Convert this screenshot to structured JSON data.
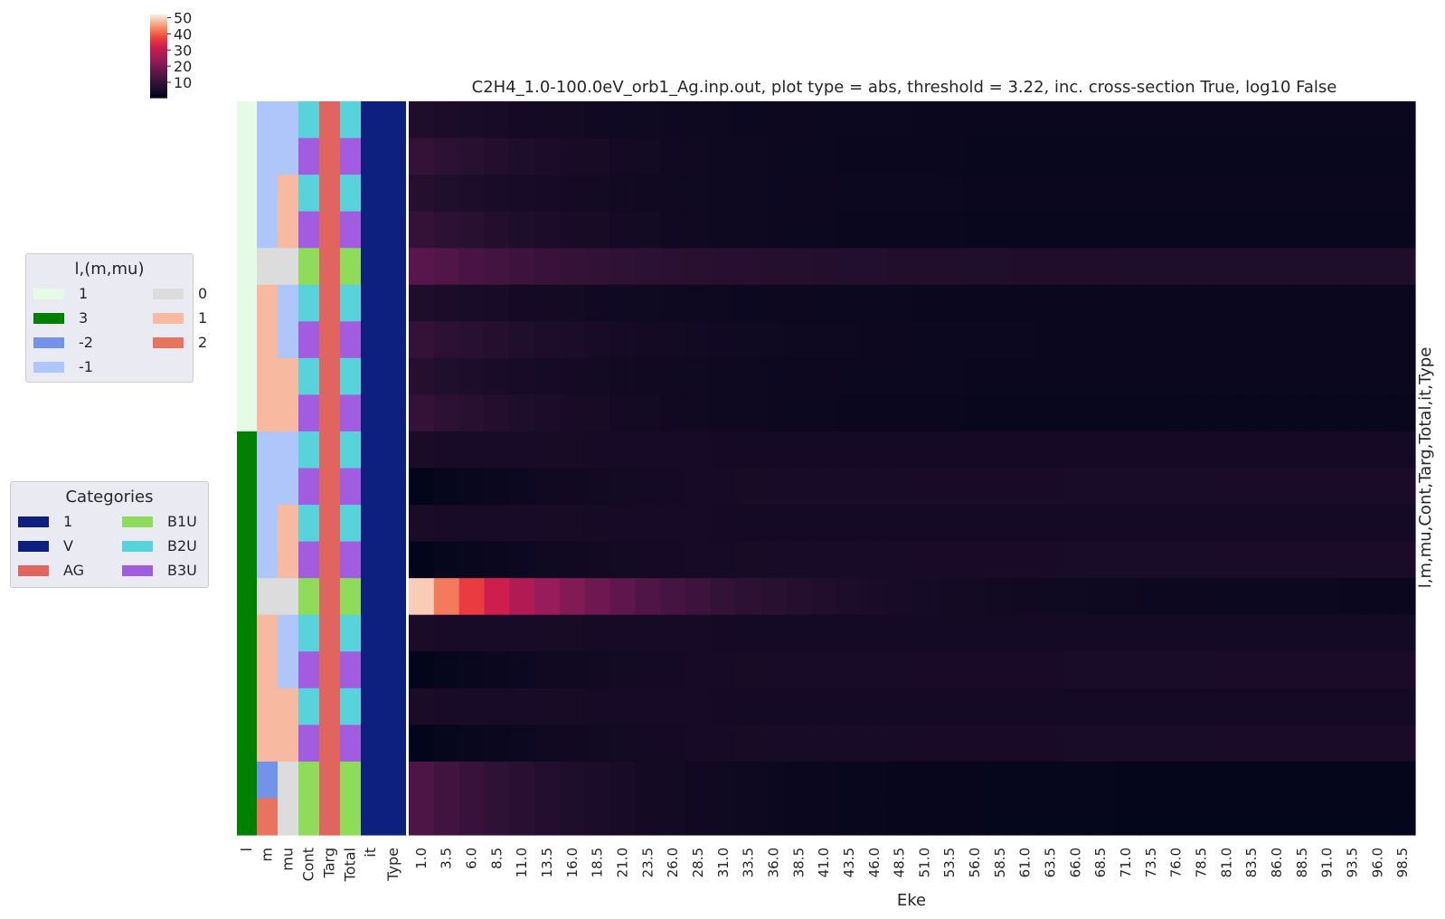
{
  "title": "C2H4_1.0-100.0eV_orb1_Ag.inp.out, plot type = abs, threshold = 3.22, inc. cross-section True, log10 False",
  "colorbar": {
    "ticks": [
      50,
      40,
      30,
      20,
      10
    ],
    "vmin": 0.5,
    "vmax": 52,
    "colormap": "rocket"
  },
  "legend_lmmu": {
    "title": "l,(m,mu)",
    "items": [
      {
        "label": "1",
        "color": "#e5fbe5"
      },
      {
        "label": "3",
        "color": "#008000"
      },
      {
        "label": "-2",
        "color": "#7393e8"
      },
      {
        "label": "-1",
        "color": "#aec6fa"
      },
      {
        "label": "0",
        "color": "#dcdcdc"
      },
      {
        "label": "1",
        "color": "#f7b99f"
      },
      {
        "label": "2",
        "color": "#e8735e"
      }
    ]
  },
  "legend_categories": {
    "title": "Categories",
    "items": [
      {
        "label": "1",
        "color": "#0d2080"
      },
      {
        "label": "V",
        "color": "#0d2080"
      },
      {
        "label": "AG",
        "color": "#e0655f"
      },
      {
        "label": "B1U",
        "color": "#8fdc5a"
      },
      {
        "label": "B2U",
        "color": "#58d3dc"
      },
      {
        "label": "B3U",
        "color": "#a25cdf"
      }
    ]
  },
  "annotation_columns": [
    "l",
    "m",
    "mu",
    "Cont",
    "Targ",
    "Total",
    "it",
    "Type"
  ],
  "chart_data": {
    "type": "heatmap",
    "title": "C2H4_1.0-100.0eV_orb1_Ag.inp.out, plot type = abs, threshold = 3.22, inc. cross-section True, log10 False",
    "xlabel": "Eke",
    "ylabel": "l,m,mu,Cont,Targ,Total,it,Type",
    "x_range": [
      1.0,
      98.5
    ],
    "x_step": 2.5,
    "x_tick_labels": [
      "1.0",
      "3.5",
      "6.0",
      "8.5",
      "11.0",
      "13.5",
      "16.0",
      "18.5",
      "21.0",
      "23.5",
      "26.0",
      "28.5",
      "31.0",
      "33.5",
      "36.0",
      "38.5",
      "41.0",
      "43.5",
      "46.0",
      "48.5",
      "51.0",
      "53.5",
      "56.0",
      "58.5",
      "61.0",
      "63.5",
      "66.0",
      "68.5",
      "71.0",
      "73.5",
      "76.0",
      "78.5",
      "81.0",
      "83.5",
      "86.0",
      "88.5",
      "91.0",
      "93.5",
      "96.0",
      "98.5"
    ],
    "rows": [
      {
        "l": "1",
        "m": "-1",
        "mu": "-1",
        "Cont": "B2U",
        "Targ": "AG",
        "Total": "B2U",
        "it": "1",
        "Type": "V",
        "start": 6,
        "end": 2
      },
      {
        "l": "1",
        "m": "-1",
        "mu": "-1",
        "Cont": "B3U",
        "Targ": "AG",
        "Total": "B3U",
        "it": "1",
        "Type": "V",
        "start": 10,
        "end": 1.5
      },
      {
        "l": "1",
        "m": "-1",
        "mu": "1",
        "Cont": "B2U",
        "Targ": "AG",
        "Total": "B2U",
        "it": "1",
        "Type": "V",
        "start": 7,
        "end": 2
      },
      {
        "l": "1",
        "m": "-1",
        "mu": "1",
        "Cont": "B3U",
        "Targ": "AG",
        "Total": "B3U",
        "it": "1",
        "Type": "V",
        "start": 10,
        "end": 1.5
      },
      {
        "l": "1",
        "m": "0",
        "mu": "0",
        "Cont": "B1U",
        "Targ": "AG",
        "Total": "B1U",
        "it": "1",
        "Type": "V",
        "start": 16,
        "end": 6
      },
      {
        "l": "1",
        "m": "1",
        "mu": "-1",
        "Cont": "B2U",
        "Targ": "AG",
        "Total": "B2U",
        "it": "1",
        "Type": "V",
        "start": 6,
        "end": 2
      },
      {
        "l": "1",
        "m": "1",
        "mu": "-1",
        "Cont": "B3U",
        "Targ": "AG",
        "Total": "B3U",
        "it": "1",
        "Type": "V",
        "start": 10,
        "end": 2
      },
      {
        "l": "1",
        "m": "1",
        "mu": "1",
        "Cont": "B2U",
        "Targ": "AG",
        "Total": "B2U",
        "it": "1",
        "Type": "V",
        "start": 7,
        "end": 2
      },
      {
        "l": "1",
        "m": "1",
        "mu": "1",
        "Cont": "B3U",
        "Targ": "AG",
        "Total": "B3U",
        "it": "1",
        "Type": "V",
        "start": 10,
        "end": 1.5
      },
      {
        "l": "3",
        "m": "-1",
        "mu": "-1",
        "Cont": "B2U",
        "Targ": "AG",
        "Total": "B2U",
        "it": "1",
        "Type": "V",
        "start": 5,
        "end": 4
      },
      {
        "l": "3",
        "m": "-1",
        "mu": "-1",
        "Cont": "B3U",
        "Targ": "AG",
        "Total": "B3U",
        "it": "1",
        "Type": "V",
        "start": 0.5,
        "end": 5
      },
      {
        "l": "3",
        "m": "-1",
        "mu": "1",
        "Cont": "B2U",
        "Targ": "AG",
        "Total": "B2U",
        "it": "1",
        "Type": "V",
        "start": 5,
        "end": 4
      },
      {
        "l": "3",
        "m": "-1",
        "mu": "1",
        "Cont": "B3U",
        "Targ": "AG",
        "Total": "B3U",
        "it": "1",
        "Type": "V",
        "start": 0.5,
        "end": 5
      },
      {
        "l": "3",
        "m": "0",
        "mu": "0",
        "Cont": "B1U",
        "Targ": "AG",
        "Total": "B1U",
        "it": "1",
        "Type": "V",
        "start": 52,
        "end": 2
      },
      {
        "l": "3",
        "m": "1",
        "mu": "-1",
        "Cont": "B2U",
        "Targ": "AG",
        "Total": "B2U",
        "it": "1",
        "Type": "V",
        "start": 5,
        "end": 4
      },
      {
        "l": "3",
        "m": "1",
        "mu": "-1",
        "Cont": "B3U",
        "Targ": "AG",
        "Total": "B3U",
        "it": "1",
        "Type": "V",
        "start": 0.5,
        "end": 5
      },
      {
        "l": "3",
        "m": "1",
        "mu": "1",
        "Cont": "B2U",
        "Targ": "AG",
        "Total": "B2U",
        "it": "1",
        "Type": "V",
        "start": 5,
        "end": 4
      },
      {
        "l": "3",
        "m": "1",
        "mu": "1",
        "Cont": "B3U",
        "Targ": "AG",
        "Total": "B3U",
        "it": "1",
        "Type": "V",
        "start": 0.5,
        "end": 5
      },
      {
        "l": "3",
        "m": "-2",
        "mu": "0",
        "Cont": "B1U",
        "Targ": "AG",
        "Total": "B1U",
        "it": "1",
        "Type": "V",
        "start": 14,
        "end": 0.8
      },
      {
        "l": "3",
        "m": "2",
        "mu": "0",
        "Cont": "B1U",
        "Targ": "AG",
        "Total": "B1U",
        "it": "1",
        "Type": "V",
        "start": 14,
        "end": 0.8
      }
    ]
  }
}
